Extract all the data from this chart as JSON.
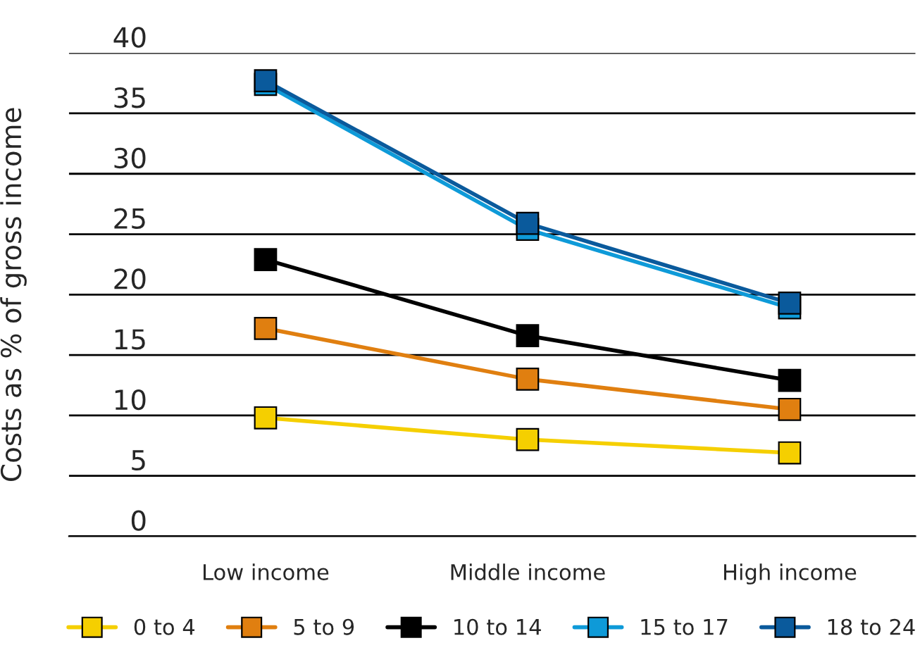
{
  "chart_data": {
    "type": "line",
    "ylabel": "Costs as % of gross income",
    "categories": [
      "Low income",
      "Middle income",
      "High income"
    ],
    "series": [
      {
        "name": "0 to 4",
        "color": "#f5cf00",
        "values": [
          9.8,
          8.0,
          6.9
        ]
      },
      {
        "name": "5 to 9",
        "color": "#e07f10",
        "values": [
          17.2,
          13.0,
          10.5
        ]
      },
      {
        "name": "10 to 14",
        "color": "#000000",
        "values": [
          22.9,
          16.6,
          12.9
        ]
      },
      {
        "name": "15 to 17",
        "color": "#0e9ad8",
        "values": [
          37.4,
          25.4,
          18.9
        ]
      },
      {
        "name": "18 to 24",
        "color": "#0a5a9c",
        "values": [
          37.7,
          25.9,
          19.3
        ]
      }
    ],
    "ylim": [
      0,
      40
    ],
    "yticks": [
      0,
      5,
      10,
      15,
      20,
      25,
      30,
      35,
      40
    ],
    "grid": "y",
    "legend": "bottom",
    "marker": "square",
    "line_style": "solid"
  }
}
